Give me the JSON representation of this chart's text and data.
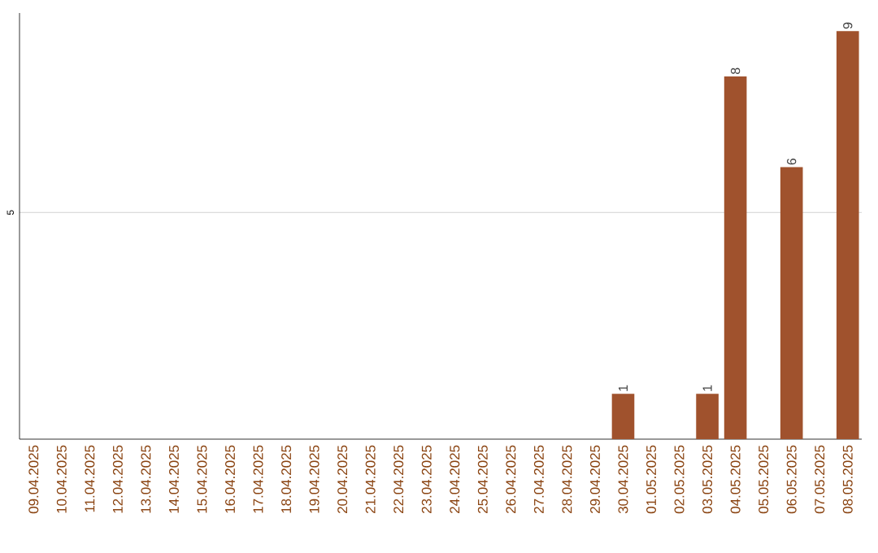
{
  "chart_data": {
    "type": "bar",
    "categories": [
      "09.04.2025",
      "10.04.2025",
      "11.04.2025",
      "12.04.2025",
      "13.04.2025",
      "14.04.2025",
      "15.04.2025",
      "16.04.2025",
      "17.04.2025",
      "18.04.2025",
      "19.04.2025",
      "20.04.2025",
      "21.04.2025",
      "22.04.2025",
      "23.04.2025",
      "24.04.2025",
      "25.04.2025",
      "26.04.2025",
      "27.04.2025",
      "28.04.2025",
      "29.04.2025",
      "30.04.2025",
      "01.05.2025",
      "02.05.2025",
      "03.05.2025",
      "04.05.2025",
      "05.05.2025",
      "06.05.2025",
      "07.05.2025",
      "08.05.2025"
    ],
    "values": [
      null,
      null,
      null,
      null,
      null,
      null,
      null,
      null,
      null,
      null,
      null,
      null,
      null,
      null,
      null,
      null,
      null,
      null,
      null,
      null,
      null,
      1,
      null,
      null,
      1,
      8,
      null,
      6,
      null,
      9
    ],
    "data_labels": true,
    "color": "#a0522d",
    "ylim": [
      0,
      9.4
    ],
    "yticks": [
      5
    ],
    "grid": "y"
  }
}
